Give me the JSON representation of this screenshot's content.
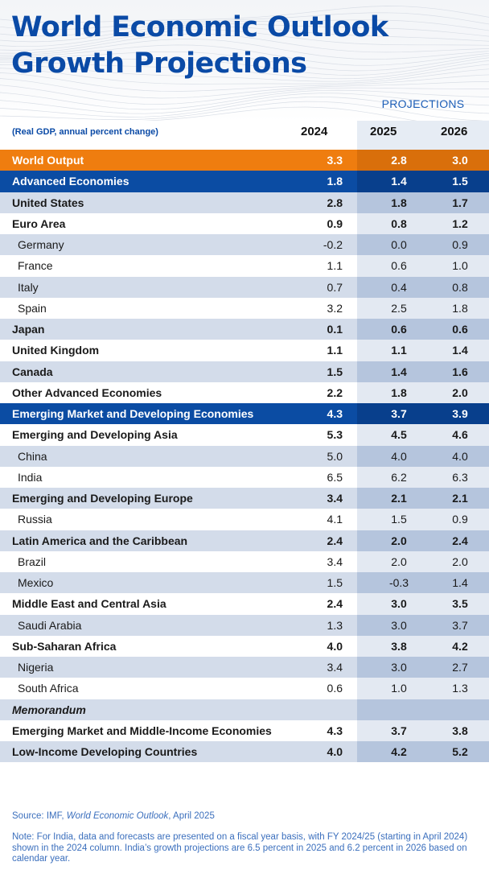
{
  "header": {
    "title_line1": "World Economic Outlook",
    "title_line2": "Growth Projections",
    "projections_label": "PROJECTIONS",
    "unit_label": "(Real GDP, annual percent change)",
    "years": [
      "2024",
      "2025",
      "2026"
    ]
  },
  "colors": {
    "brand_blue": "#0a4aa6",
    "world_output_orange": "#ef7d0f",
    "row_band": "#d3dcea",
    "projection_band": "#b5c5dd"
  },
  "rows": [
    {
      "name": "World Output",
      "style": "orange",
      "indent": 0,
      "v2024": "3.3",
      "v2025": "2.8",
      "v2026": "3.0"
    },
    {
      "name": "Advanced Economies",
      "style": "blue",
      "indent": 0,
      "v2024": "1.8",
      "v2025": "1.4",
      "v2026": "1.5"
    },
    {
      "name": "United States",
      "style": "",
      "indent": 0,
      "v2024": "2.8",
      "v2025": "1.8",
      "v2026": "1.7"
    },
    {
      "name": "Euro Area",
      "style": "",
      "indent": 0,
      "v2024": "0.9",
      "v2025": "0.8",
      "v2026": "1.2"
    },
    {
      "name": "Germany",
      "style": "",
      "indent": 1,
      "v2024": "-0.2",
      "v2025": "0.0",
      "v2026": "0.9"
    },
    {
      "name": "France",
      "style": "",
      "indent": 1,
      "v2024": "1.1",
      "v2025": "0.6",
      "v2026": "1.0"
    },
    {
      "name": "Italy",
      "style": "",
      "indent": 1,
      "v2024": "0.7",
      "v2025": "0.4",
      "v2026": "0.8"
    },
    {
      "name": "Spain",
      "style": "",
      "indent": 1,
      "v2024": "3.2",
      "v2025": "2.5",
      "v2026": "1.8"
    },
    {
      "name": "Japan",
      "style": "",
      "indent": 0,
      "v2024": "0.1",
      "v2025": "0.6",
      "v2026": "0.6"
    },
    {
      "name": "United Kingdom",
      "style": "",
      "indent": 0,
      "v2024": "1.1",
      "v2025": "1.1",
      "v2026": "1.4"
    },
    {
      "name": "Canada",
      "style": "",
      "indent": 0,
      "v2024": "1.5",
      "v2025": "1.4",
      "v2026": "1.6"
    },
    {
      "name": "Other Advanced Economies",
      "style": "",
      "indent": 0,
      "v2024": "2.2",
      "v2025": "1.8",
      "v2026": "2.0"
    },
    {
      "name": "Emerging Market and Developing Economies",
      "style": "blue",
      "indent": 0,
      "v2024": "4.3",
      "v2025": "3.7",
      "v2026": "3.9"
    },
    {
      "name": "Emerging and Developing Asia",
      "style": "",
      "indent": 0,
      "v2024": "5.3",
      "v2025": "4.5",
      "v2026": "4.6"
    },
    {
      "name": "China",
      "style": "",
      "indent": 1,
      "v2024": "5.0",
      "v2025": "4.0",
      "v2026": "4.0"
    },
    {
      "name": "India",
      "style": "",
      "indent": 1,
      "v2024": "6.5",
      "v2025": "6.2",
      "v2026": "6.3"
    },
    {
      "name": "Emerging and Developing Europe",
      "style": "",
      "indent": 0,
      "v2024": "3.4",
      "v2025": "2.1",
      "v2026": "2.1"
    },
    {
      "name": "Russia",
      "style": "",
      "indent": 1,
      "v2024": "4.1",
      "v2025": "1.5",
      "v2026": "0.9"
    },
    {
      "name": "Latin America and the Caribbean",
      "style": "",
      "indent": 0,
      "v2024": "2.4",
      "v2025": "2.0",
      "v2026": "2.4"
    },
    {
      "name": "Brazil",
      "style": "",
      "indent": 1,
      "v2024": "3.4",
      "v2025": "2.0",
      "v2026": "2.0"
    },
    {
      "name": "Mexico",
      "style": "",
      "indent": 1,
      "v2024": "1.5",
      "v2025": "-0.3",
      "v2026": "1.4"
    },
    {
      "name": "Middle East and Central Asia",
      "style": "",
      "indent": 0,
      "v2024": "2.4",
      "v2025": "3.0",
      "v2026": "3.5"
    },
    {
      "name": "Saudi Arabia",
      "style": "",
      "indent": 1,
      "v2024": "1.3",
      "v2025": "3.0",
      "v2026": "3.7"
    },
    {
      "name": "Sub-Saharan Africa",
      "style": "",
      "indent": 0,
      "v2024": "4.0",
      "v2025": "3.8",
      "v2026": "4.2"
    },
    {
      "name": "Nigeria",
      "style": "",
      "indent": 1,
      "v2024": "3.4",
      "v2025": "3.0",
      "v2026": "2.7"
    },
    {
      "name": "South Africa",
      "style": "",
      "indent": 1,
      "v2024": "0.6",
      "v2025": "1.0",
      "v2026": "1.3"
    },
    {
      "name": "Memorandum",
      "style": "memo",
      "indent": 0,
      "v2024": "",
      "v2025": "",
      "v2026": ""
    },
    {
      "name": "Emerging Market and Middle-Income Economies",
      "style": "",
      "indent": 0,
      "v2024": "4.3",
      "v2025": "3.7",
      "v2026": "3.8"
    },
    {
      "name": "Low-Income Developing Countries",
      "style": "",
      "indent": 0,
      "v2024": "4.0",
      "v2025": "4.2",
      "v2026": "5.2"
    }
  ],
  "footer": {
    "source_prefix": "Source: IMF, ",
    "source_title": "World Economic Outlook",
    "source_suffix": ", April 2025",
    "note": "Note: For India, data and forecasts are presented on a fiscal year basis, with FY 2024/25 (starting in April 2024) shown in the 2024 column. India’s growth projections are 6.5 percent in 2025 and 6.2 percent in 2026 based on calendar year."
  }
}
